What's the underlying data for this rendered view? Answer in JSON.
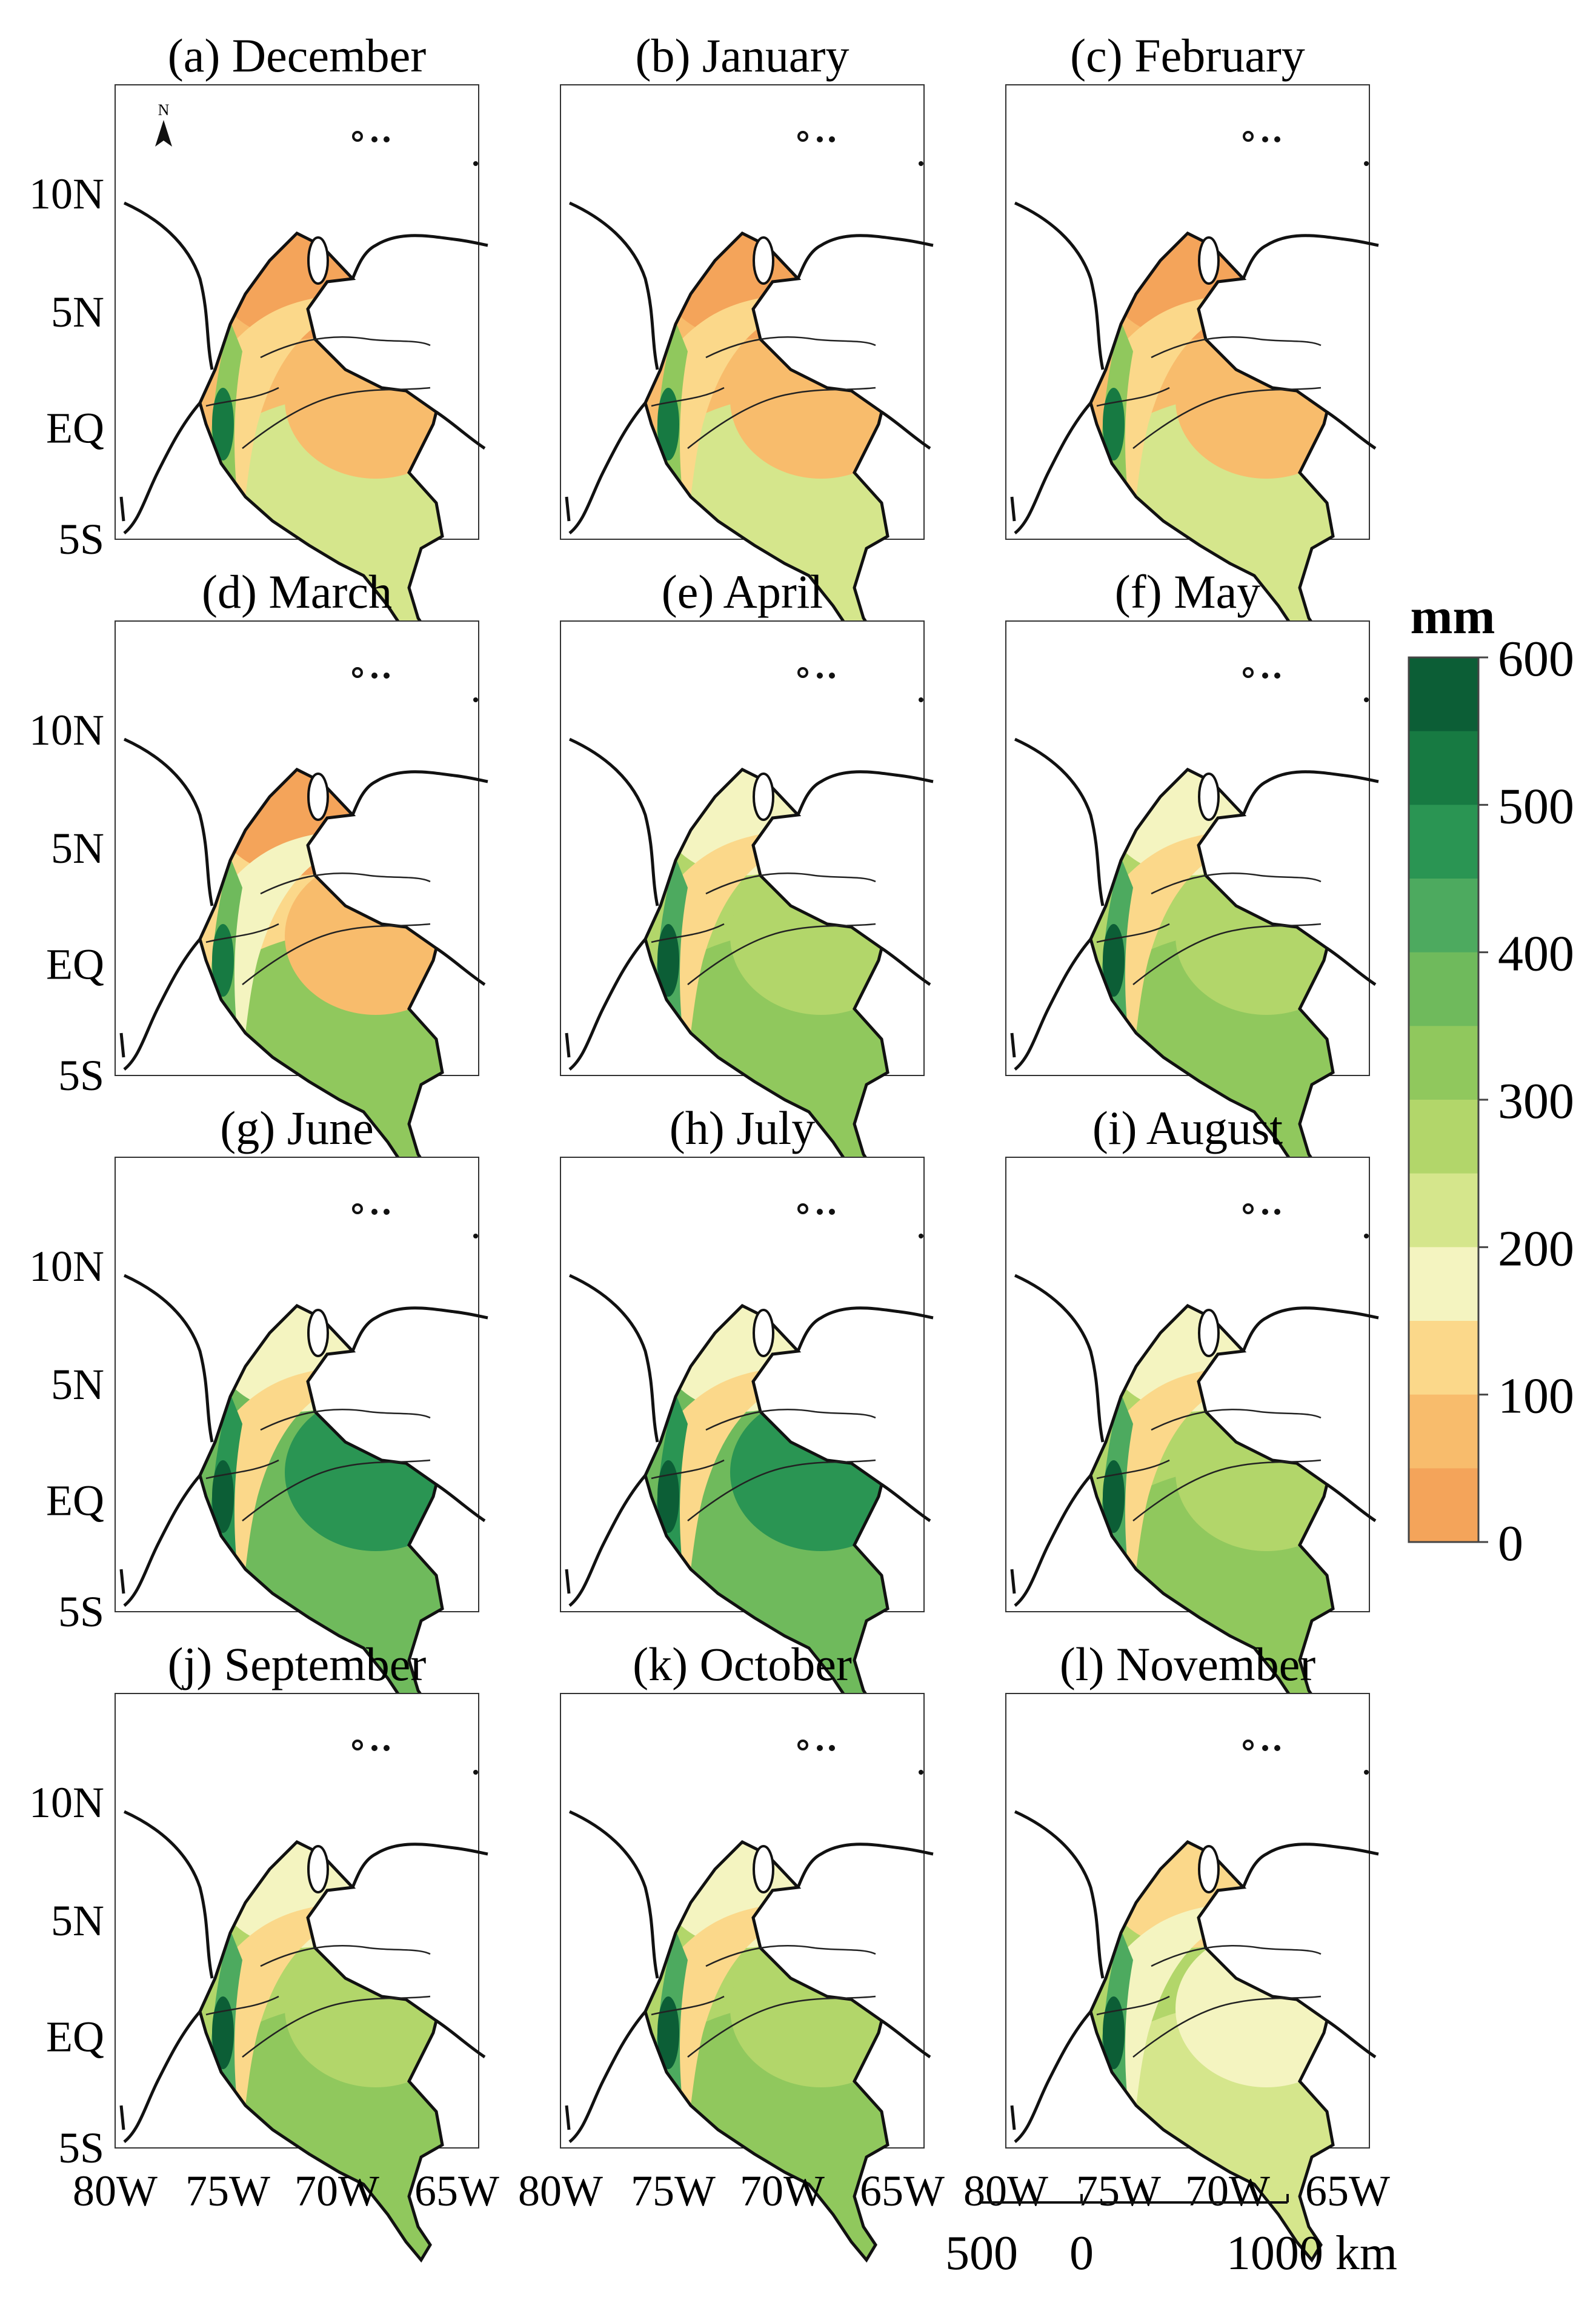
{
  "panels": [
    {
      "label": "(a) December",
      "scheme": "dry"
    },
    {
      "label": "(b) January",
      "scheme": "dry"
    },
    {
      "label": "(c) February",
      "scheme": "dry"
    },
    {
      "label": "(d) March",
      "scheme": "dry_wet_south"
    },
    {
      "label": "(e) April",
      "scheme": "wet"
    },
    {
      "label": "(f) May",
      "scheme": "wet"
    },
    {
      "label": "(g) June",
      "scheme": "wetter"
    },
    {
      "label": "(h) July",
      "scheme": "wetter"
    },
    {
      "label": "(i) August",
      "scheme": "wet"
    },
    {
      "label": "(j) September",
      "scheme": "wet"
    },
    {
      "label": "(k) October",
      "scheme": "wet"
    },
    {
      "label": "(l) November",
      "scheme": "wet_light"
    }
  ],
  "latitude_labels": [
    "10N",
    "5N",
    "EQ",
    "5S"
  ],
  "longitude_labels": [
    "80W",
    "75W",
    "70W",
    "65W"
  ],
  "north_arrow_label": "N",
  "colorbar": {
    "unit": "mm",
    "ticks": [
      "600",
      "500",
      "400",
      "300",
      "200",
      "100",
      "0"
    ],
    "colors_top_to_bottom": [
      "#0c5e36",
      "#177a42",
      "#2a9553",
      "#4daa5f",
      "#6fba5c",
      "#90c85d",
      "#b2d66a",
      "#d5e68c",
      "#f4f4c0",
      "#fbd88a",
      "#f8bc6c",
      "#f4a45a"
    ]
  },
  "scale_bar": {
    "labels": [
      "500",
      "0",
      "1000 km"
    ]
  }
}
